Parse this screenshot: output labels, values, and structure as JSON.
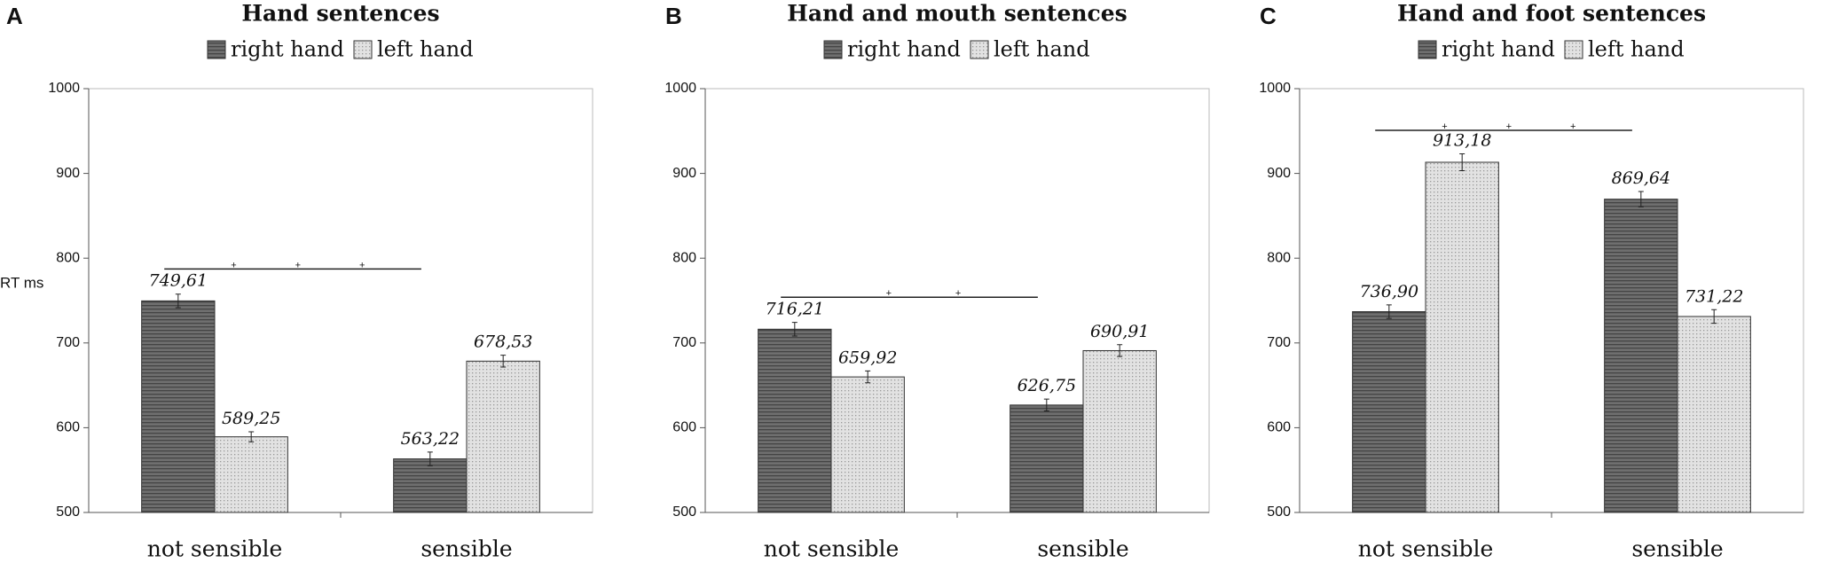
{
  "chart_data": [
    {
      "type": "bar",
      "panel": "A",
      "title": "Hand sentences",
      "ylabel": "RT ms",
      "categories": [
        "not sensible",
        "sensible"
      ],
      "series": [
        {
          "name": "right hand",
          "color": "#6f6f6f",
          "values": [
            749.61,
            563.22
          ],
          "value_labels": [
            "749,61",
            "563,22"
          ],
          "errors": [
            8,
            8
          ]
        },
        {
          "name": "left hand",
          "color": "#e2e2e2",
          "values": [
            589.25,
            678.53
          ],
          "value_labels": [
            "589,25",
            "678,53"
          ],
          "errors": [
            6,
            7
          ]
        }
      ],
      "ylim": [
        500,
        1000
      ],
      "yticks": [
        500,
        600,
        700,
        800,
        900,
        1000
      ],
      "annotation": [
        "+",
        "+",
        "+"
      ]
    },
    {
      "type": "bar",
      "panel": "B",
      "title": "Hand and mouth sentences",
      "categories": [
        "not sensible",
        "sensible"
      ],
      "series": [
        {
          "name": "right hand",
          "color": "#6f6f6f",
          "values": [
            716.21,
            626.75
          ],
          "value_labels": [
            "716,21",
            "626,75"
          ],
          "errors": [
            8,
            7
          ]
        },
        {
          "name": "left hand",
          "color": "#e2e2e2",
          "values": [
            659.92,
            690.91
          ],
          "value_labels": [
            "659,92",
            "690,91"
          ],
          "errors": [
            7,
            7
          ]
        }
      ],
      "ylim": [
        500,
        1000
      ],
      "yticks": [
        500,
        600,
        700,
        800,
        900,
        1000
      ],
      "annotation": [
        "+",
        "+"
      ]
    },
    {
      "type": "bar",
      "panel": "C",
      "title": "Hand and foot sentences",
      "categories": [
        "not sensible",
        "sensible"
      ],
      "series": [
        {
          "name": "right hand",
          "color": "#6f6f6f",
          "values": [
            736.9,
            869.64
          ],
          "value_labels": [
            "736,90",
            "869,64"
          ],
          "errors": [
            8,
            9
          ]
        },
        {
          "name": "left hand",
          "color": "#e2e2e2",
          "values": [
            913.18,
            731.22
          ],
          "value_labels": [
            "913,18",
            "731,22"
          ],
          "errors": [
            10,
            8
          ]
        }
      ],
      "ylim": [
        500,
        1000
      ],
      "yticks": [
        500,
        600,
        700,
        800,
        900,
        1000
      ],
      "annotation": [
        "+",
        "+",
        "+"
      ]
    }
  ]
}
